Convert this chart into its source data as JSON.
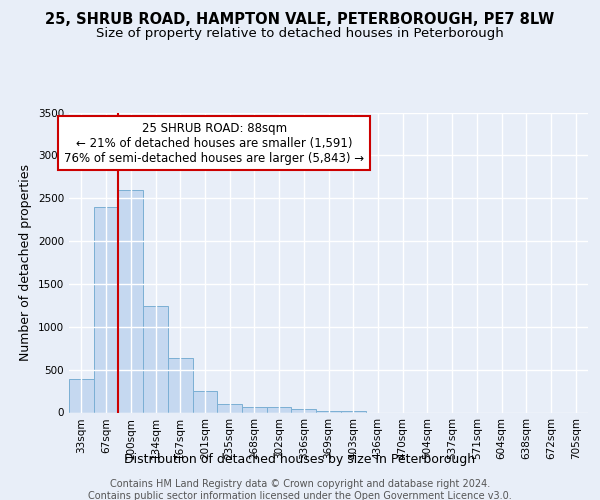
{
  "title_line1": "25, SHRUB ROAD, HAMPTON VALE, PETERBOROUGH, PE7 8LW",
  "title_line2": "Size of property relative to detached houses in Peterborough",
  "xlabel": "Distribution of detached houses by size in Peterborough",
  "ylabel": "Number of detached properties",
  "categories": [
    "33sqm",
    "67sqm",
    "100sqm",
    "134sqm",
    "167sqm",
    "201sqm",
    "235sqm",
    "268sqm",
    "302sqm",
    "336sqm",
    "369sqm",
    "403sqm",
    "436sqm",
    "470sqm",
    "504sqm",
    "537sqm",
    "571sqm",
    "604sqm",
    "638sqm",
    "672sqm",
    "705sqm"
  ],
  "bar_values": [
    390,
    2400,
    2600,
    1240,
    640,
    255,
    95,
    65,
    60,
    40,
    20,
    15,
    0,
    0,
    0,
    0,
    0,
    0,
    0,
    0,
    0
  ],
  "bar_color": "#c5d8f0",
  "bar_edgecolor": "#7bafd4",
  "vline_color": "#cc0000",
  "annotation_text": "25 SHRUB ROAD: 88sqm\n← 21% of detached houses are smaller (1,591)\n76% of semi-detached houses are larger (5,843) →",
  "annotation_box_facecolor": "#ffffff",
  "annotation_box_edgecolor": "#cc0000",
  "ylim": [
    0,
    3500
  ],
  "yticks": [
    0,
    500,
    1000,
    1500,
    2000,
    2500,
    3000,
    3500
  ],
  "bg_color": "#e8eef8",
  "plot_bg_color": "#e8eef8",
  "grid_color": "#ffffff",
  "footer_line1": "Contains HM Land Registry data © Crown copyright and database right 2024.",
  "footer_line2": "Contains public sector information licensed under the Open Government Licence v3.0.",
  "title_fontsize": 10.5,
  "subtitle_fontsize": 9.5,
  "axis_label_fontsize": 9,
  "tick_fontsize": 7.5,
  "annotation_fontsize": 8.5,
  "footer_fontsize": 7,
  "ylabel_fontsize": 9
}
